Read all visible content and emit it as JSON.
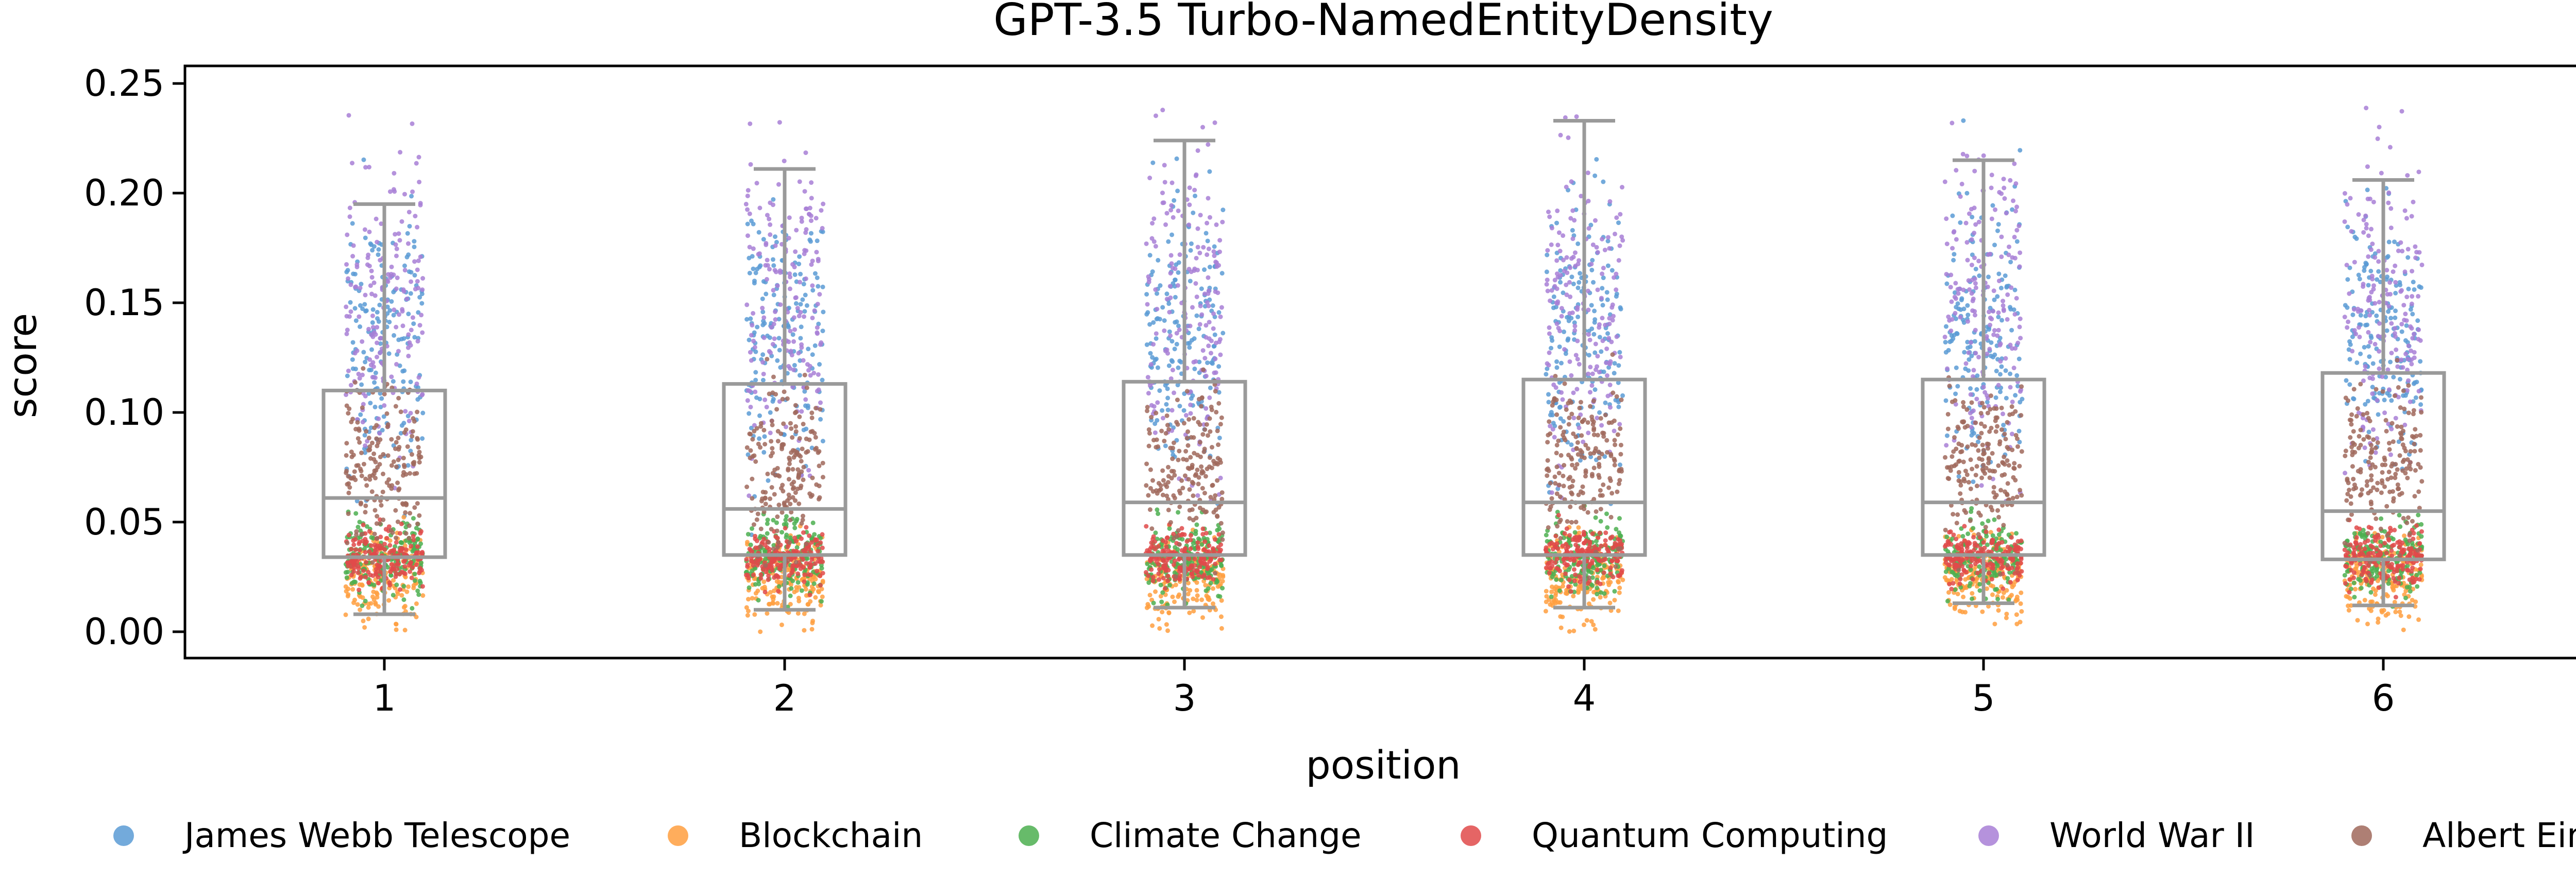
{
  "chart_data": {
    "type": "box-strip",
    "title": "GPT-3.5 Turbo-NamedEntityDensity",
    "xlabel": "position",
    "ylabel": "score",
    "categories": [
      "1",
      "2",
      "3",
      "4",
      "5",
      "6"
    ],
    "ylim": [
      -0.012,
      0.258
    ],
    "yticks": [
      "0.00",
      "0.05",
      "0.10",
      "0.15",
      "0.20",
      "0.25"
    ],
    "grid": false,
    "legend_position": "bottom",
    "boxes": [
      {
        "position": "1",
        "whisker_low": 0.008,
        "q1": 0.034,
        "median": 0.061,
        "q3": 0.11,
        "whisker_high": 0.195
      },
      {
        "position": "2",
        "whisker_low": 0.01,
        "q1": 0.035,
        "median": 0.056,
        "q3": 0.113,
        "whisker_high": 0.211
      },
      {
        "position": "3",
        "whisker_low": 0.011,
        "q1": 0.035,
        "median": 0.059,
        "q3": 0.114,
        "whisker_high": 0.224
      },
      {
        "position": "4",
        "whisker_low": 0.011,
        "q1": 0.035,
        "median": 0.059,
        "q3": 0.115,
        "whisker_high": 0.233
      },
      {
        "position": "5",
        "whisker_low": 0.013,
        "q1": 0.035,
        "median": 0.059,
        "q3": 0.115,
        "whisker_high": 0.215
      },
      {
        "position": "6",
        "whisker_low": 0.012,
        "q1": 0.033,
        "median": 0.055,
        "q3": 0.118,
        "whisker_high": 0.206
      }
    ],
    "series": [
      {
        "name": "James Webb Telescope",
        "color": "#5b9bd5",
        "center": 0.135,
        "spread": 0.05
      },
      {
        "name": "Blockchain",
        "color": "#ff9f40",
        "center": 0.025,
        "spread": 0.016
      },
      {
        "name": "Climate Change",
        "color": "#4caf50",
        "center": 0.034,
        "spread": 0.014
      },
      {
        "name": "Quantum Computing",
        "color": "#e04a4a",
        "center": 0.034,
        "spread": 0.01
      },
      {
        "name": "World War II",
        "color": "#a87fd6",
        "center": 0.15,
        "spread": 0.06
      },
      {
        "name": "Albert Einstein",
        "color": "#a0695c",
        "center": 0.075,
        "spread": 0.03
      }
    ]
  }
}
